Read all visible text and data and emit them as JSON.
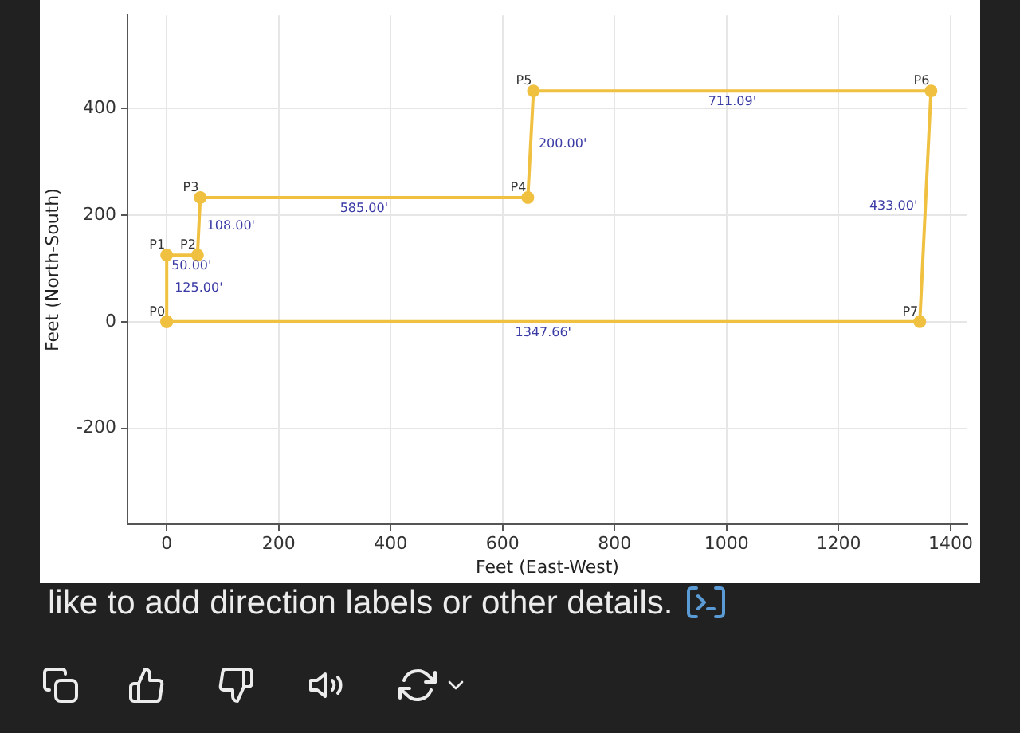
{
  "chart_data": {
    "type": "scatter",
    "xlabel": "Feet (East-West)",
    "ylabel": "Feet (North-South)",
    "x": [
      0,
      0,
      55,
      60,
      645,
      655,
      1365,
      1345,
      0
    ],
    "values": [
      0,
      125,
      125,
      233,
      233,
      433,
      433,
      0,
      0
    ],
    "color": "#f0c040",
    "value_labels": [
      "P0",
      "P1",
      "P2",
      "P3",
      "P4",
      "P5",
      "P6",
      "P7",
      null
    ],
    "xlim": [
      -70,
      1430
    ],
    "ylim": [
      -380,
      575
    ],
    "xticks": [
      0,
      200,
      400,
      600,
      800,
      1000,
      1200,
      1400
    ],
    "yticks": [
      -200,
      0,
      200,
      400
    ],
    "grid": true,
    "legend": false,
    "marker": "circle",
    "line_style": "solid",
    "annotations": [
      "125.00'",
      "50.00'",
      "108.00'",
      "585.00'",
      "200.00'",
      "711.09'",
      "433.00'",
      "1347.66'",
      "like to add direction labels or other details."
    ]
  }
}
